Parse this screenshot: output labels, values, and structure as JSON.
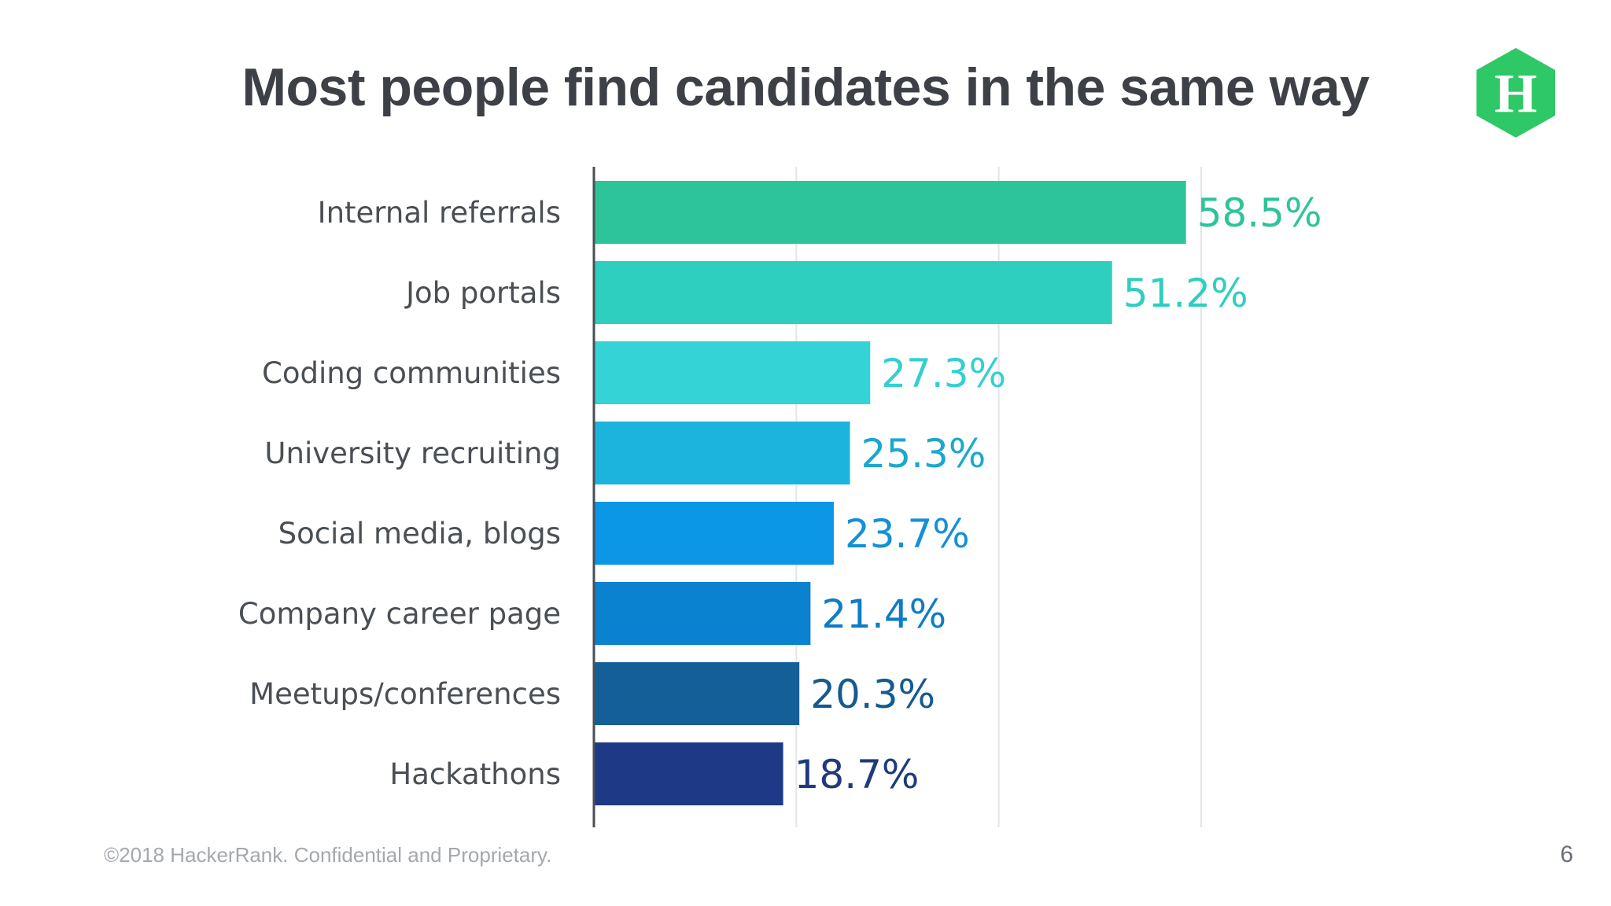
{
  "slide": {
    "title": "Most people find candidates in the same way",
    "footer": "©2018 HackerRank. Confidential and Proprietary.",
    "page_number": "6",
    "logo_letter": "H",
    "logo_color": "#2ec866"
  },
  "chart_data": {
    "type": "bar",
    "orientation": "horizontal",
    "title": "Most people find candidates in the same way",
    "categories": [
      "Internal referrals",
      "Job portals",
      "Coding communities",
      "University recruiting",
      "Social media, blogs",
      "Company career page",
      "Meetups/conferences",
      "Hackathons"
    ],
    "values": [
      58.5,
      51.2,
      27.3,
      25.3,
      23.7,
      21.4,
      20.3,
      18.7
    ],
    "value_labels": [
      "58.5%",
      "51.2%",
      "27.3%",
      "25.3%",
      "23.7%",
      "21.4%",
      "20.3%",
      "18.7%"
    ],
    "bar_colors": [
      "#2ec49a",
      "#2ecfbf",
      "#33d3d6",
      "#1cb4dc",
      "#0b96e6",
      "#0a82d0",
      "#155f99",
      "#1e3a86"
    ],
    "label_colors": [
      "#2ec49a",
      "#2ecfbf",
      "#33cfd2",
      "#1aa8cf",
      "#1390d8",
      "#0f7cc4",
      "#155a90",
      "#1f3a7e"
    ],
    "xlim": [
      0,
      60
    ],
    "x_gridlines": [
      20,
      40,
      60
    ],
    "grid": true,
    "xlabel": "",
    "ylabel": ""
  }
}
